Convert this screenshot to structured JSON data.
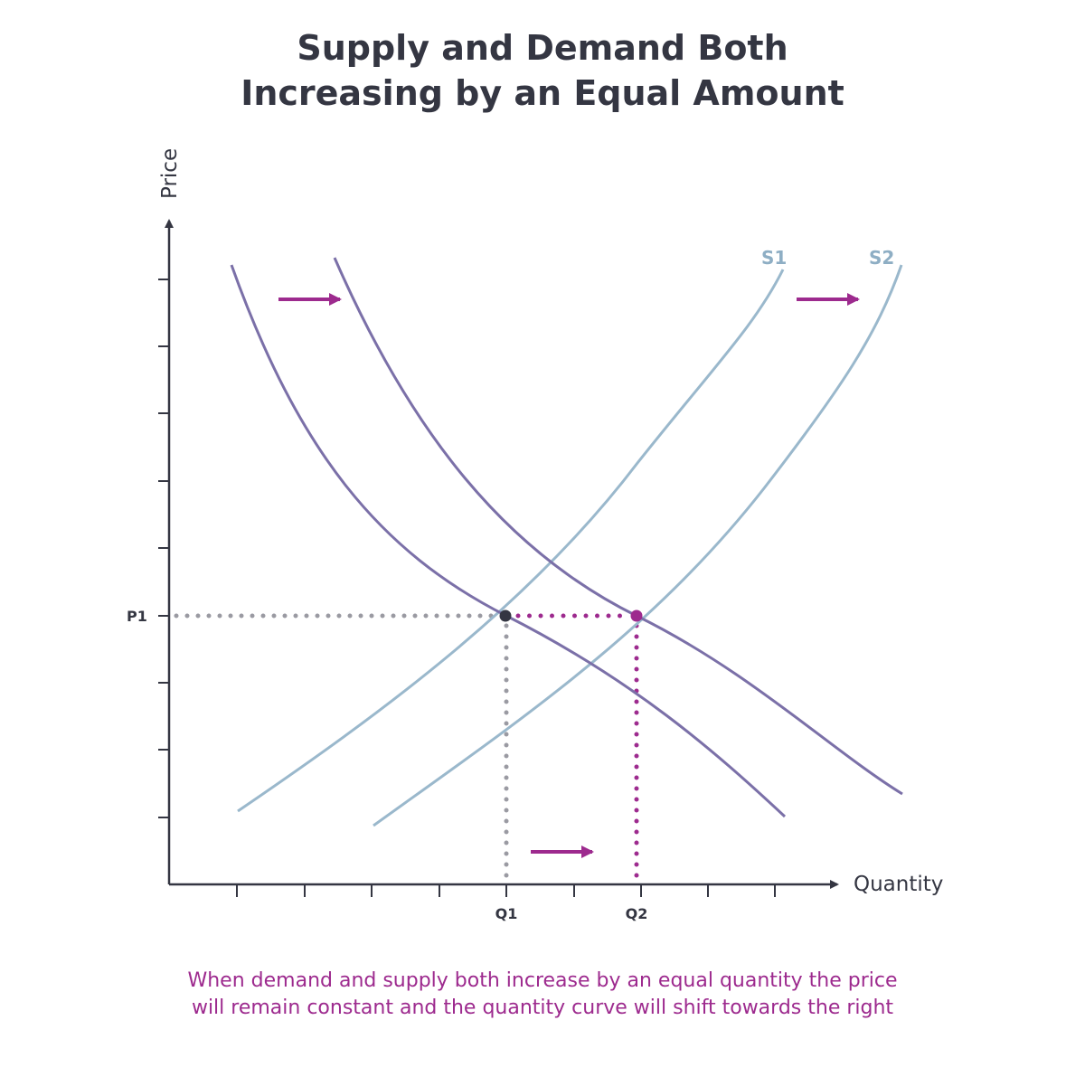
{
  "title": {
    "line1": "Supply and Demand Both",
    "line2": "Increasing by an Equal Amount"
  },
  "axes": {
    "x_label": "Quantity",
    "y_label": "Price",
    "x_ticks": [
      "Q1",
      "Q2"
    ],
    "y_ticks": [
      "P1"
    ]
  },
  "curves": {
    "supply_1": "S1",
    "supply_2": "S2"
  },
  "caption": {
    "line1": "When demand and supply both increase by an equal quantity the price",
    "line2": "will remain constant and the quantity curve will shift towards the right"
  },
  "colors": {
    "demand": "#7b70a8",
    "supply": "#9ab8cc",
    "accent": "#9d2a8e",
    "axis": "#343642",
    "guide_gray": "#9a9aa2"
  }
}
